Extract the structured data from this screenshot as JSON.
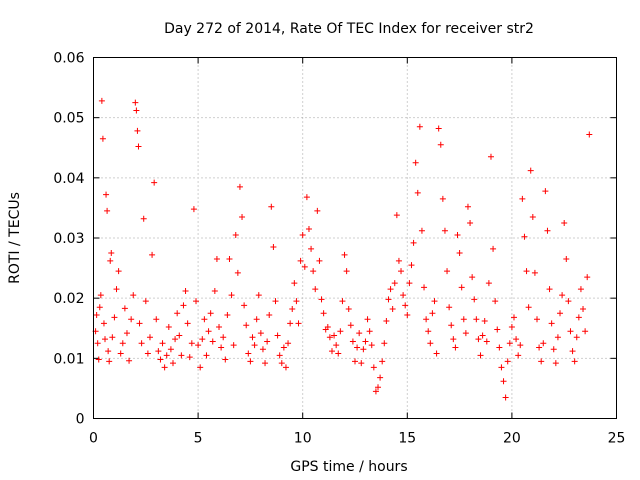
{
  "chart_data": {
    "type": "scatter",
    "title": "Day 272 of 2014, Rate Of TEC Index for receiver str2",
    "xlabel": "GPS time / hours",
    "ylabel": "ROTI / TECUs",
    "xlim": [
      0,
      25
    ],
    "ylim": [
      0,
      0.06
    ],
    "x_ticks": [
      0,
      5,
      10,
      15,
      20,
      25
    ],
    "x_tick_labels": [
      "0",
      "5",
      "10",
      "15",
      "20",
      "25"
    ],
    "y_ticks": [
      0,
      0.01,
      0.02,
      0.03,
      0.04,
      0.05,
      0.06
    ],
    "y_tick_labels": [
      "0",
      "0.01",
      "0.02",
      "0.03",
      "0.04",
      "0.05",
      "0.06"
    ],
    "grid": true,
    "marker": "plus",
    "color": "#ff0000",
    "series": [
      {
        "name": "ROTI",
        "points": [
          [
            0.1,
            0.0145
          ],
          [
            0.15,
            0.0172
          ],
          [
            0.2,
            0.0125
          ],
          [
            0.25,
            0.0098
          ],
          [
            0.3,
            0.0185
          ],
          [
            0.35,
            0.0205
          ],
          [
            0.4,
            0.0528
          ],
          [
            0.45,
            0.0465
          ],
          [
            0.5,
            0.0158
          ],
          [
            0.55,
            0.0132
          ],
          [
            0.6,
            0.0372
          ],
          [
            0.65,
            0.0345
          ],
          [
            0.7,
            0.0112
          ],
          [
            0.75,
            0.0095
          ],
          [
            0.8,
            0.0262
          ],
          [
            0.85,
            0.0275
          ],
          [
            0.9,
            0.0135
          ],
          [
            1.0,
            0.0168
          ],
          [
            1.1,
            0.0215
          ],
          [
            1.2,
            0.0245
          ],
          [
            1.3,
            0.0108
          ],
          [
            1.4,
            0.0125
          ],
          [
            1.5,
            0.0183
          ],
          [
            1.6,
            0.0142
          ],
          [
            1.7,
            0.0096
          ],
          [
            1.8,
            0.0165
          ],
          [
            1.9,
            0.0205
          ],
          [
            2.0,
            0.0525
          ],
          [
            2.05,
            0.0512
          ],
          [
            2.1,
            0.0478
          ],
          [
            2.15,
            0.0452
          ],
          [
            2.2,
            0.0158
          ],
          [
            2.3,
            0.0125
          ],
          [
            2.4,
            0.0332
          ],
          [
            2.5,
            0.0195
          ],
          [
            2.6,
            0.0108
          ],
          [
            2.7,
            0.0135
          ],
          [
            2.8,
            0.0272
          ],
          [
            2.9,
            0.0392
          ],
          [
            3.0,
            0.0165
          ],
          [
            3.1,
            0.0112
          ],
          [
            3.2,
            0.0098
          ],
          [
            3.3,
            0.0125
          ],
          [
            3.4,
            0.0085
          ],
          [
            3.5,
            0.0105
          ],
          [
            3.6,
            0.0152
          ],
          [
            3.7,
            0.0115
          ],
          [
            3.8,
            0.0092
          ],
          [
            3.9,
            0.0132
          ],
          [
            4.0,
            0.0175
          ],
          [
            4.1,
            0.0138
          ],
          [
            4.2,
            0.0105
          ],
          [
            4.3,
            0.0188
          ],
          [
            4.4,
            0.0212
          ],
          [
            4.5,
            0.0158
          ],
          [
            4.6,
            0.0102
          ],
          [
            4.7,
            0.0125
          ],
          [
            4.8,
            0.0348
          ],
          [
            4.9,
            0.0195
          ],
          [
            5.0,
            0.0122
          ],
          [
            5.1,
            0.0085
          ],
          [
            5.2,
            0.0132
          ],
          [
            5.3,
            0.0165
          ],
          [
            5.4,
            0.0105
          ],
          [
            5.5,
            0.0145
          ],
          [
            5.6,
            0.0175
          ],
          [
            5.7,
            0.0128
          ],
          [
            5.8,
            0.0212
          ],
          [
            5.9,
            0.0265
          ],
          [
            6.0,
            0.0152
          ],
          [
            6.1,
            0.0118
          ],
          [
            6.2,
            0.0135
          ],
          [
            6.3,
            0.0098
          ],
          [
            6.4,
            0.0172
          ],
          [
            6.5,
            0.0265
          ],
          [
            6.6,
            0.0205
          ],
          [
            6.7,
            0.0122
          ],
          [
            6.8,
            0.0305
          ],
          [
            6.9,
            0.0242
          ],
          [
            7.0,
            0.0385
          ],
          [
            7.1,
            0.0335
          ],
          [
            7.2,
            0.0188
          ],
          [
            7.3,
            0.0155
          ],
          [
            7.4,
            0.0108
          ],
          [
            7.5,
            0.0095
          ],
          [
            7.6,
            0.0135
          ],
          [
            7.7,
            0.0122
          ],
          [
            7.8,
            0.0165
          ],
          [
            7.9,
            0.0205
          ],
          [
            8.0,
            0.0142
          ],
          [
            8.1,
            0.0115
          ],
          [
            8.2,
            0.0092
          ],
          [
            8.3,
            0.0128
          ],
          [
            8.4,
            0.0172
          ],
          [
            8.5,
            0.0352
          ],
          [
            8.6,
            0.0285
          ],
          [
            8.7,
            0.0195
          ],
          [
            8.8,
            0.0138
          ],
          [
            8.9,
            0.0105
          ],
          [
            9.0,
            0.0092
          ],
          [
            9.1,
            0.0118
          ],
          [
            9.2,
            0.0085
          ],
          [
            9.3,
            0.0125
          ],
          [
            9.4,
            0.0158
          ],
          [
            9.5,
            0.0182
          ],
          [
            9.6,
            0.0225
          ],
          [
            9.7,
            0.0195
          ],
          [
            9.8,
            0.0158
          ],
          [
            9.9,
            0.0262
          ],
          [
            10.0,
            0.0305
          ],
          [
            10.1,
            0.0252
          ],
          [
            10.2,
            0.0368
          ],
          [
            10.3,
            0.0315
          ],
          [
            10.4,
            0.0282
          ],
          [
            10.5,
            0.0245
          ],
          [
            10.6,
            0.0215
          ],
          [
            10.7,
            0.0345
          ],
          [
            10.8,
            0.0262
          ],
          [
            10.9,
            0.0198
          ],
          [
            11.0,
            0.0175
          ],
          [
            11.1,
            0.0148
          ],
          [
            11.2,
            0.0152
          ],
          [
            11.3,
            0.0135
          ],
          [
            11.4,
            0.0112
          ],
          [
            11.5,
            0.0138
          ],
          [
            11.6,
            0.0122
          ],
          [
            11.7,
            0.0108
          ],
          [
            11.8,
            0.0145
          ],
          [
            11.9,
            0.0195
          ],
          [
            12.0,
            0.0272
          ],
          [
            12.1,
            0.0245
          ],
          [
            12.2,
            0.0182
          ],
          [
            12.3,
            0.0155
          ],
          [
            12.4,
            0.0128
          ],
          [
            12.5,
            0.0095
          ],
          [
            12.6,
            0.0118
          ],
          [
            12.7,
            0.0142
          ],
          [
            12.8,
            0.0092
          ],
          [
            12.9,
            0.0115
          ],
          [
            13.0,
            0.0128
          ],
          [
            13.1,
            0.0165
          ],
          [
            13.2,
            0.0145
          ],
          [
            13.3,
            0.0122
          ],
          [
            13.4,
            0.0085
          ],
          [
            13.5,
            0.0045
          ],
          [
            13.6,
            0.0052
          ],
          [
            13.7,
            0.0068
          ],
          [
            13.8,
            0.0095
          ],
          [
            13.9,
            0.0125
          ],
          [
            14.0,
            0.0162
          ],
          [
            14.1,
            0.0198
          ],
          [
            14.2,
            0.0215
          ],
          [
            14.3,
            0.0182
          ],
          [
            14.4,
            0.0225
          ],
          [
            14.5,
            0.0338
          ],
          [
            14.6,
            0.0262
          ],
          [
            14.7,
            0.0245
          ],
          [
            14.8,
            0.0205
          ],
          [
            14.9,
            0.0188
          ],
          [
            15.0,
            0.0172
          ],
          [
            15.1,
            0.0225
          ],
          [
            15.2,
            0.0255
          ],
          [
            15.3,
            0.0292
          ],
          [
            15.4,
            0.0425
          ],
          [
            15.5,
            0.0375
          ],
          [
            15.6,
            0.0485
          ],
          [
            15.7,
            0.0312
          ],
          [
            15.8,
            0.0218
          ],
          [
            15.9,
            0.0165
          ],
          [
            16.0,
            0.0145
          ],
          [
            16.1,
            0.0125
          ],
          [
            16.2,
            0.0175
          ],
          [
            16.3,
            0.0195
          ],
          [
            16.4,
            0.0108
          ],
          [
            16.5,
            0.0482
          ],
          [
            16.6,
            0.0455
          ],
          [
            16.7,
            0.0365
          ],
          [
            16.8,
            0.0312
          ],
          [
            16.9,
            0.0245
          ],
          [
            17.0,
            0.0185
          ],
          [
            17.1,
            0.0155
          ],
          [
            17.2,
            0.0132
          ],
          [
            17.3,
            0.0118
          ],
          [
            17.4,
            0.0305
          ],
          [
            17.5,
            0.0275
          ],
          [
            17.6,
            0.0218
          ],
          [
            17.7,
            0.0165
          ],
          [
            17.8,
            0.0142
          ],
          [
            17.9,
            0.0352
          ],
          [
            18.0,
            0.0325
          ],
          [
            18.1,
            0.0235
          ],
          [
            18.2,
            0.0198
          ],
          [
            18.3,
            0.0165
          ],
          [
            18.4,
            0.0132
          ],
          [
            18.5,
            0.0105
          ],
          [
            18.6,
            0.0138
          ],
          [
            18.7,
            0.0162
          ],
          [
            18.8,
            0.0128
          ],
          [
            18.9,
            0.0225
          ],
          [
            19.0,
            0.0435
          ],
          [
            19.1,
            0.0282
          ],
          [
            19.2,
            0.0195
          ],
          [
            19.3,
            0.0148
          ],
          [
            19.4,
            0.0118
          ],
          [
            19.5,
            0.0085
          ],
          [
            19.6,
            0.0062
          ],
          [
            19.7,
            0.0035
          ],
          [
            19.8,
            0.0095
          ],
          [
            19.9,
            0.0125
          ],
          [
            20.0,
            0.0152
          ],
          [
            20.1,
            0.0168
          ],
          [
            20.2,
            0.0132
          ],
          [
            20.3,
            0.0105
          ],
          [
            20.4,
            0.0122
          ],
          [
            20.5,
            0.0365
          ],
          [
            20.6,
            0.0302
          ],
          [
            20.7,
            0.0245
          ],
          [
            20.8,
            0.0185
          ],
          [
            20.9,
            0.0412
          ],
          [
            21.0,
            0.0335
          ],
          [
            21.1,
            0.0242
          ],
          [
            21.2,
            0.0165
          ],
          [
            21.3,
            0.0118
          ],
          [
            21.4,
            0.0095
          ],
          [
            21.5,
            0.0125
          ],
          [
            21.6,
            0.0378
          ],
          [
            21.7,
            0.0312
          ],
          [
            21.8,
            0.0215
          ],
          [
            21.9,
            0.0158
          ],
          [
            22.0,
            0.0115
          ],
          [
            22.1,
            0.0092
          ],
          [
            22.2,
            0.0135
          ],
          [
            22.3,
            0.0175
          ],
          [
            22.4,
            0.0205
          ],
          [
            22.5,
            0.0325
          ],
          [
            22.6,
            0.0265
          ],
          [
            22.7,
            0.0195
          ],
          [
            22.8,
            0.0145
          ],
          [
            22.9,
            0.0112
          ],
          [
            23.0,
            0.0095
          ],
          [
            23.1,
            0.0135
          ],
          [
            23.2,
            0.0168
          ],
          [
            23.3,
            0.0215
          ],
          [
            23.4,
            0.0182
          ],
          [
            23.5,
            0.0145
          ],
          [
            23.6,
            0.0235
          ],
          [
            23.7,
            0.0472
          ]
        ]
      }
    ]
  }
}
